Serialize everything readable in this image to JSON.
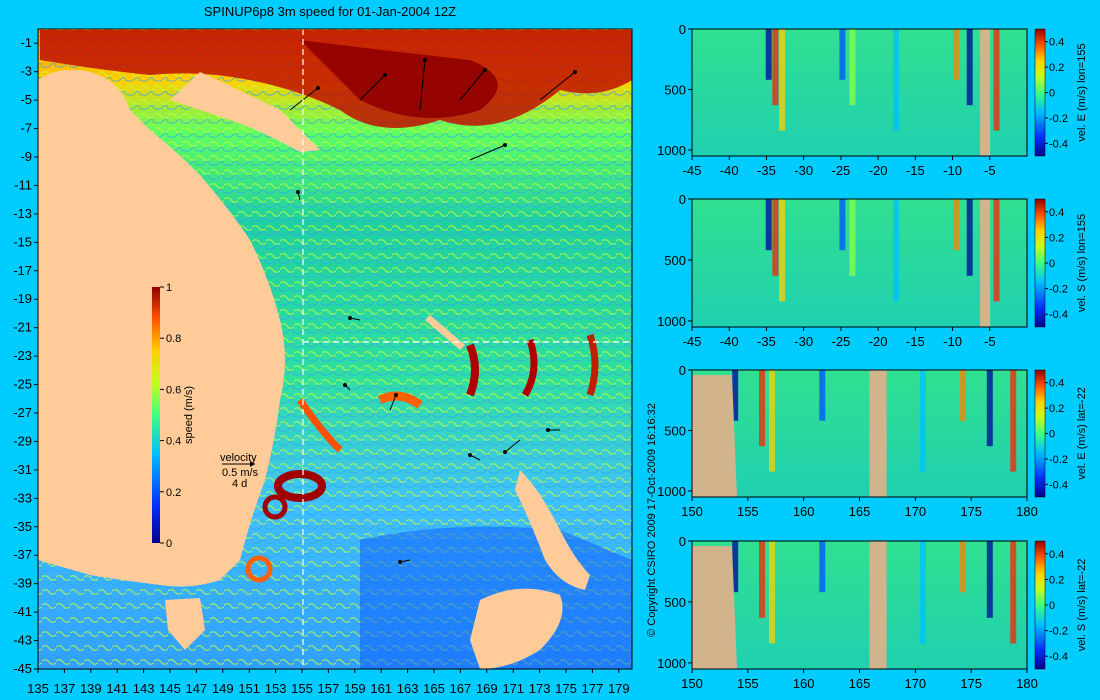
{
  "title": "SPINUP6p8 3m speed for 01-Jan-2004 12Z",
  "copyright": "© Copyright CSIRO 2009  17-Oct-2009 16:16:32",
  "colors": {
    "background": "#00ccff",
    "land": "#ffcc99",
    "section_land": "#d2b48c"
  },
  "chart_data": [
    {
      "type": "heatmap",
      "name": "map",
      "x_ticks": [
        "135",
        "137",
        "139",
        "141",
        "143",
        "145",
        "147",
        "149",
        "151",
        "153",
        "155",
        "157",
        "159",
        "161",
        "163",
        "165",
        "167",
        "169",
        "171",
        "173",
        "175",
        "177",
        "179"
      ],
      "y_ticks": [
        "-1",
        "-3",
        "-5",
        "-7",
        "-9",
        "-11",
        "-13",
        "-15",
        "-17",
        "-19",
        "-21",
        "-23",
        "-25",
        "-27",
        "-29",
        "-31",
        "-33",
        "-35",
        "-37",
        "-39",
        "-41",
        "-43",
        "-45"
      ],
      "xlim": [
        135,
        180
      ],
      "ylim": [
        -45,
        0
      ],
      "colorbar": {
        "label": "speed (m/s)",
        "ticks": [
          "0",
          "0.2",
          "0.4",
          "0.6",
          "0.8",
          "1"
        ],
        "range": [
          0,
          1
        ]
      },
      "velocity_key": {
        "title": "velocity",
        "speed": "0.5 m/s",
        "duration": "4 d"
      },
      "section_lines": {
        "lon": 155,
        "lat": -22
      }
    },
    {
      "type": "heatmap",
      "name": "section-1",
      "cbar_label": "vel. E (m/s) lon=155",
      "x_ticks": [
        "-45",
        "-40",
        "-35",
        "-30",
        "-25",
        "-20",
        "-15",
        "-10",
        "-5"
      ],
      "y_ticks": [
        "0",
        "500",
        "1000"
      ],
      "cbar_ticks": [
        "0.4",
        "0.2",
        "0",
        "-0.2",
        "-0.4"
      ],
      "xlim": [
        -45,
        0
      ],
      "ylim": [
        1050,
        0
      ]
    },
    {
      "type": "heatmap",
      "name": "section-2",
      "cbar_label": "vel. S (m/s) lon=155",
      "x_ticks": [
        "-45",
        "-40",
        "-35",
        "-30",
        "-25",
        "-20",
        "-15",
        "-10",
        "-5"
      ],
      "y_ticks": [
        "0",
        "500",
        "1000"
      ],
      "cbar_ticks": [
        "0.4",
        "0.2",
        "0",
        "-0.2",
        "-0.4"
      ],
      "xlim": [
        -45,
        0
      ],
      "ylim": [
        1050,
        0
      ]
    },
    {
      "type": "heatmap",
      "name": "section-3",
      "cbar_label": "vel. E (m/s) lat=-22",
      "x_ticks": [
        "150",
        "155",
        "160",
        "165",
        "170",
        "175",
        "180"
      ],
      "y_ticks": [
        "0",
        "500",
        "1000"
      ],
      "cbar_ticks": [
        "0.4",
        "0.2",
        "0",
        "-0.2",
        "-0.4"
      ],
      "xlim": [
        150,
        180
      ],
      "ylim": [
        1050,
        0
      ]
    },
    {
      "type": "heatmap",
      "name": "section-4",
      "cbar_label": "vel. S (m/s) lat=-22",
      "x_ticks": [
        "150",
        "155",
        "160",
        "165",
        "170",
        "175",
        "180"
      ],
      "y_ticks": [
        "0",
        "500",
        "1000"
      ],
      "cbar_ticks": [
        "0.4",
        "0.2",
        "0",
        "-0.2",
        "-0.4"
      ],
      "xlim": [
        150,
        180
      ],
      "ylim": [
        1050,
        0
      ]
    }
  ]
}
